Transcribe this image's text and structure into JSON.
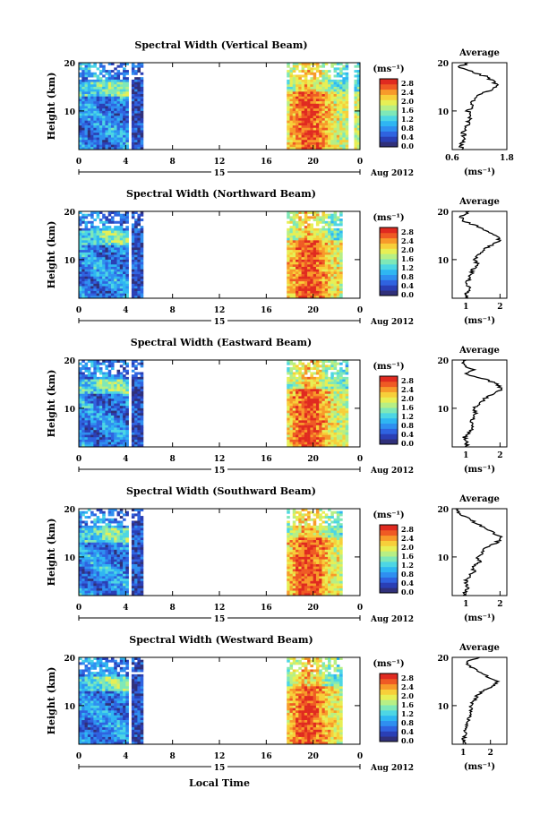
{
  "figure": {
    "date_label": "Aug 2012",
    "day_label": "15",
    "xlabel": "Local Time",
    "units_label": "(ms⁻¹)",
    "colorbar_ticks": [
      "2.8",
      "2.4",
      "2.0",
      "1.6",
      "1.2",
      "0.8",
      "0.4",
      "0.0"
    ],
    "colormap": [
      "#30307a",
      "#2a3fb5",
      "#2f63e0",
      "#2f8ff0",
      "#2fb6f2",
      "#4dd6e4",
      "#7ee8b8",
      "#b7ef85",
      "#e7ef55",
      "#f7cf3a",
      "#f79a2a",
      "#ef5a24",
      "#e02a20"
    ]
  },
  "chart_data": [
    {
      "type": "heatmap",
      "title": "Spectral Width (Vertical Beam)",
      "ylabel": "Height (km)",
      "xlim": [
        0,
        24
      ],
      "ylim": [
        2,
        20
      ],
      "xticks": [
        "0",
        "4",
        "8",
        "12",
        "16",
        "20",
        "0"
      ],
      "yticks": [
        "20",
        "10"
      ],
      "data_gaps_hours": [
        [
          4.2,
          4.4
        ],
        [
          5.5,
          17.6
        ],
        [
          23.0,
          23.4
        ]
      ],
      "colorbar": {
        "range": [
          0.0,
          3.0
        ]
      },
      "average_profile": {
        "title": "Average",
        "xlabel": "(ms⁻¹)",
        "xlim": [
          0.6,
          1.8
        ],
        "xticks": [
          "0.6",
          "1.8"
        ],
        "yticks": [
          "20",
          "10"
        ],
        "heights": [
          2,
          3,
          4,
          5,
          6,
          7,
          8,
          9,
          10,
          11,
          12,
          13,
          14,
          15,
          16,
          17,
          18,
          19,
          20
        ],
        "values": [
          0.78,
          0.8,
          0.82,
          0.85,
          0.86,
          0.92,
          0.96,
          1.0,
          0.95,
          1.05,
          1.05,
          1.1,
          1.35,
          1.6,
          1.5,
          1.4,
          1.05,
          0.75,
          0.95
        ]
      }
    },
    {
      "type": "heatmap",
      "title": "Spectral Width (Northward Beam)",
      "ylabel": "Height (km)",
      "xlim": [
        0,
        24
      ],
      "ylim": [
        2,
        20
      ],
      "xticks": [
        "0",
        "4",
        "8",
        "12",
        "16",
        "20",
        "0"
      ],
      "yticks": [
        "20",
        "10"
      ],
      "data_gaps_hours": [
        [
          4.2,
          4.4
        ],
        [
          5.5,
          17.6
        ],
        [
          22.5,
          24
        ]
      ],
      "colorbar": {
        "range": [
          0.0,
          3.0
        ]
      },
      "average_profile": {
        "title": "Average",
        "xlabel": "(ms⁻¹)",
        "xlim": [
          0.6,
          2.2
        ],
        "xticks": [
          "1",
          "2"
        ],
        "yticks": [
          "20",
          "10"
        ],
        "heights": [
          2,
          3,
          4,
          5,
          6,
          7,
          8,
          9,
          10,
          11,
          12,
          13,
          14,
          15,
          16,
          17,
          18,
          19,
          20
        ],
        "values": [
          1.05,
          1.0,
          1.1,
          1.0,
          1.1,
          1.15,
          1.2,
          1.35,
          1.25,
          1.4,
          1.5,
          1.75,
          2.0,
          1.85,
          1.6,
          1.3,
          0.95,
          0.85,
          1.1
        ]
      }
    },
    {
      "type": "heatmap",
      "title": "Spectral Width (Eastward Beam)",
      "ylabel": "Height (km)",
      "xlim": [
        0,
        24
      ],
      "ylim": [
        2,
        20
      ],
      "xticks": [
        "0",
        "4",
        "8",
        "12",
        "16",
        "20",
        "0"
      ],
      "yticks": [
        "20",
        "10"
      ],
      "data_gaps_hours": [
        [
          4.2,
          4.4
        ],
        [
          5.5,
          17.6
        ],
        [
          23.0,
          24
        ]
      ],
      "colorbar": {
        "range": [
          0.0,
          3.0
        ]
      },
      "average_profile": {
        "title": "Average",
        "xlabel": "(ms⁻¹)",
        "xlim": [
          0.6,
          2.2
        ],
        "xticks": [
          "1",
          "2"
        ],
        "yticks": [
          "20",
          "10"
        ],
        "heights": [
          2,
          3,
          4,
          5,
          6,
          7,
          8,
          9,
          10,
          11,
          12,
          13,
          14,
          15,
          16,
          17,
          18,
          19,
          20
        ],
        "values": [
          1.0,
          1.05,
          0.95,
          1.1,
          1.2,
          1.15,
          1.25,
          1.3,
          1.2,
          1.4,
          1.55,
          1.8,
          2.05,
          1.9,
          1.6,
          1.0,
          1.2,
          0.9,
          1.0
        ]
      }
    },
    {
      "type": "heatmap",
      "title": "Spectral Width (Southward Beam)",
      "ylabel": "Height (km)",
      "xlim": [
        0,
        24
      ],
      "ylim": [
        2,
        20
      ],
      "xticks": [
        "0",
        "4",
        "8",
        "12",
        "16",
        "20",
        "0"
      ],
      "yticks": [
        "20",
        "10"
      ],
      "data_gaps_hours": [
        [
          4.2,
          4.4
        ],
        [
          5.5,
          17.6
        ],
        [
          22.5,
          24
        ]
      ],
      "colorbar": {
        "range": [
          0.0,
          3.0
        ]
      },
      "average_profile": {
        "title": "Average",
        "xlabel": "(ms⁻¹)",
        "xlim": [
          0.6,
          2.2
        ],
        "xticks": [
          "1",
          "2"
        ],
        "yticks": [
          "20",
          "10"
        ],
        "heights": [
          2,
          3,
          4,
          5,
          6,
          7,
          8,
          9,
          10,
          11,
          12,
          13,
          14,
          15,
          16,
          17,
          18,
          19,
          20
        ],
        "values": [
          0.95,
          1.0,
          1.05,
          1.0,
          1.1,
          1.25,
          1.2,
          1.4,
          1.35,
          1.5,
          1.6,
          1.9,
          2.05,
          1.8,
          1.55,
          1.3,
          1.05,
          0.8,
          0.7
        ]
      }
    },
    {
      "type": "heatmap",
      "title": "Spectral Width (Westward Beam)",
      "ylabel": "Height (km)",
      "xlim": [
        0,
        24
      ],
      "ylim": [
        2,
        20
      ],
      "xticks": [
        "0",
        "4",
        "8",
        "12",
        "16",
        "20",
        "0"
      ],
      "yticks": [
        "20",
        "10"
      ],
      "data_gaps_hours": [
        [
          4.2,
          4.4
        ],
        [
          5.5,
          17.6
        ],
        [
          22.5,
          24
        ]
      ],
      "colorbar": {
        "range": [
          0.0,
          3.0
        ]
      },
      "average_profile": {
        "title": "Average",
        "xlabel": "(ms⁻¹)",
        "xlim": [
          0.6,
          2.6
        ],
        "xticks": [
          "1",
          "2"
        ],
        "yticks": [
          "20",
          "10"
        ],
        "heights": [
          2,
          3,
          4,
          5,
          6,
          7,
          8,
          9,
          10,
          11,
          12,
          13,
          14,
          15,
          16,
          17,
          18,
          19,
          20
        ],
        "values": [
          1.05,
          1.0,
          1.1,
          1.05,
          1.15,
          1.2,
          1.25,
          1.3,
          1.25,
          1.4,
          1.5,
          1.7,
          2.1,
          2.25,
          1.9,
          1.6,
          1.3,
          1.1,
          1.6
        ]
      }
    }
  ]
}
